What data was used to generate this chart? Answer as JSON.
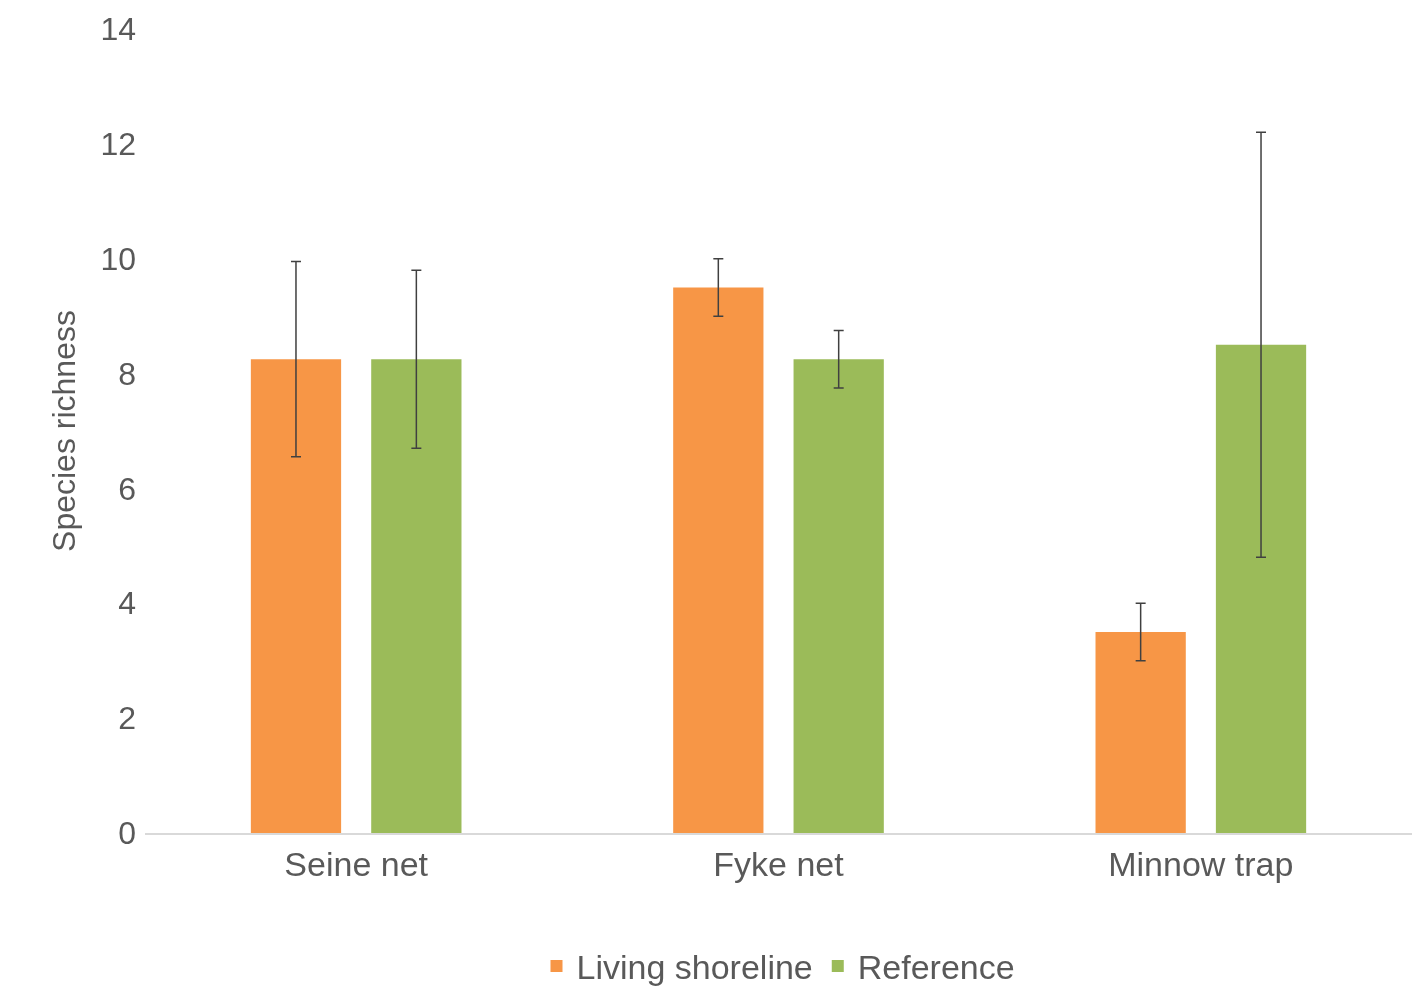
{
  "chart_data": {
    "type": "bar",
    "ylabel": "Species richness",
    "categories": [
      "Seine net",
      "Fyke net",
      "Minnow trap"
    ],
    "series": [
      {
        "name": "Living shoreline",
        "color": "#f79646",
        "values": [
          8.25,
          9.5,
          3.5
        ],
        "errors": [
          1.7,
          0.5,
          0.5
        ]
      },
      {
        "name": "Reference",
        "color": "#9bbb59",
        "values": [
          8.25,
          8.25,
          8.5
        ],
        "errors": [
          1.55,
          0.5,
          3.7
        ]
      }
    ],
    "ylim": [
      0,
      14
    ],
    "yticks": [
      0,
      2,
      4,
      6,
      8,
      10,
      12,
      14
    ],
    "grid": false,
    "legend": "bottom"
  }
}
